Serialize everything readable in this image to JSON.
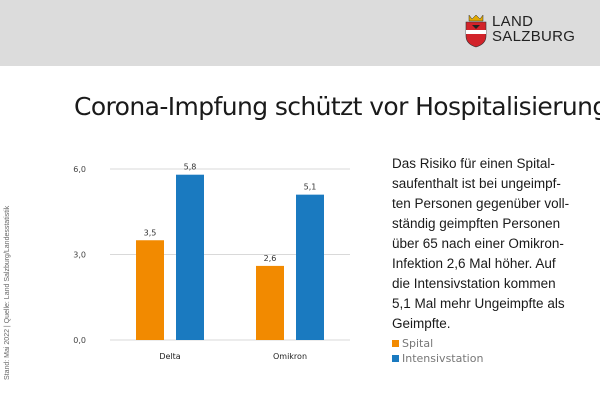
{
  "header": {
    "logo_line1": "LAND",
    "logo_line2": "SALZBURG",
    "colors": {
      "band": "#dcdcdc",
      "coat_red": "#d2232a",
      "coat_gold": "#e0a800"
    }
  },
  "title": "Corona-Impfung schützt vor Hospitalisierung",
  "source": "Stand: Mai 2022 | Quelle: Land Salzburg/Landesstatistik",
  "description_lines": [
    "Das Risiko für einen Spital-",
    "saufenthalt ist bei ungeimpf-",
    "ten Personen gegenüber voll-",
    "ständig geimpften Personen",
    "über 65 nach einer Omikron-",
    "Infektion 2,6 Mal höher. Auf",
    "die Intensivstation kommen",
    "5,1 Mal mehr Ungeimpfte als",
    "Geimpfte."
  ],
  "chart_data": {
    "type": "bar",
    "categories": [
      "Delta",
      "Omikron"
    ],
    "series": [
      {
        "name": "Spital",
        "values": [
          3.5,
          2.6
        ],
        "labels": [
          "3,5",
          "2,6"
        ],
        "color": "#f28a00"
      },
      {
        "name": "Intensivstation",
        "values": [
          5.8,
          5.1
        ],
        "labels": [
          "5,8",
          "5,1"
        ],
        "color": "#1a7ac0"
      }
    ],
    "ylim": [
      0,
      6
    ],
    "yticks": [
      0,
      3,
      6
    ],
    "ytick_labels": [
      "0,0",
      "3,0",
      "6,0"
    ],
    "grid": true,
    "legend_position": "right"
  }
}
